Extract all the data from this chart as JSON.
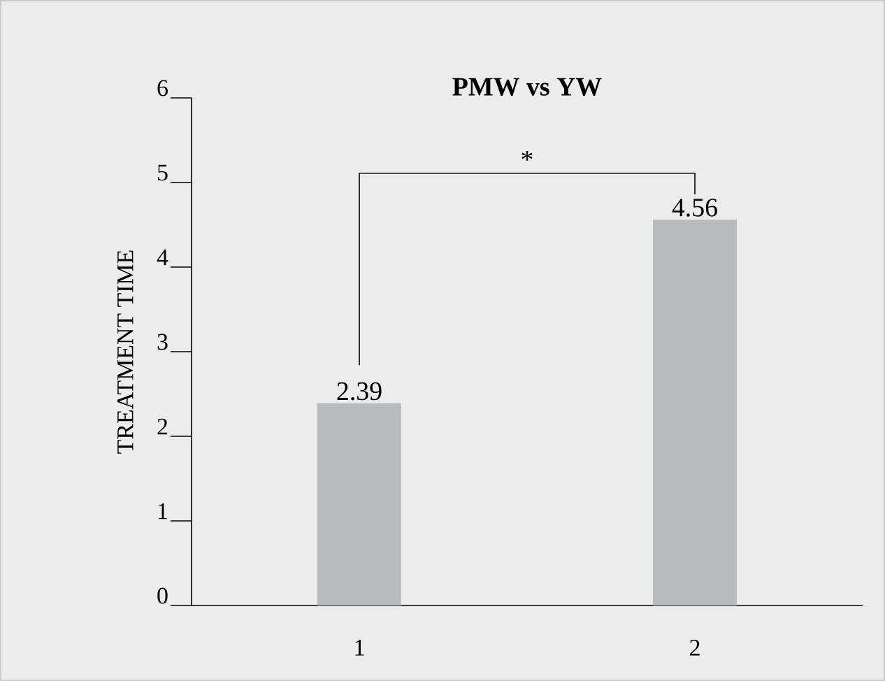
{
  "chart_data": {
    "type": "bar",
    "title": "PMW vs YW",
    "ylabel": "TREATMENT TIME",
    "categories": [
      "1",
      "2"
    ],
    "values": [
      2.39,
      4.56
    ],
    "color": "#b9babc",
    "data_labels": true,
    "ylim": [
      0,
      6
    ],
    "yticks": [
      0,
      1,
      2,
      3,
      4,
      5,
      6
    ],
    "grid": false,
    "annotations": [
      "*"
    ]
  }
}
